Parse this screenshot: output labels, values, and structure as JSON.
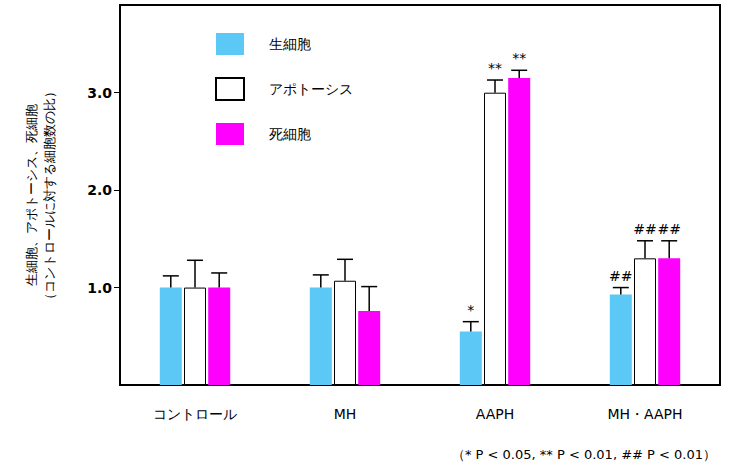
{
  "chart_data": {
    "type": "bar",
    "ylabel": [
      "生細胞、アポトーシス、死細胞",
      "（コントロールに対する細胞数の比）"
    ],
    "categories": [
      "コントロール",
      "MH",
      "AAPH",
      "MH・AAPH"
    ],
    "series": [
      {
        "name": "生細胞",
        "color": "#5bc8f5",
        "values": [
          1.0,
          1.0,
          0.55,
          0.93
        ],
        "errors": [
          0.12,
          0.13,
          0.1,
          0.07
        ],
        "annotations": [
          null,
          null,
          "*",
          "##"
        ]
      },
      {
        "name": "アポトーシス",
        "color": "#ffffff",
        "values": [
          1.0,
          1.07,
          3.0,
          1.3
        ],
        "errors": [
          0.28,
          0.22,
          0.13,
          0.18
        ],
        "annotations": [
          null,
          null,
          "**",
          "##"
        ]
      },
      {
        "name": "死細胞",
        "color": "#ff00ff",
        "values": [
          1.0,
          0.76,
          3.15,
          1.3
        ],
        "errors": [
          0.15,
          0.25,
          0.08,
          0.18
        ],
        "annotations": [
          null,
          null,
          "**",
          "##"
        ]
      }
    ],
    "ylim": [
      0,
      3.9
    ],
    "yticks": [
      {
        "value": 1,
        "label": "1.0"
      },
      {
        "value": 2,
        "label": "2.0"
      },
      {
        "value": 3,
        "label": "3.0"
      }
    ],
    "legend": "upper left",
    "footnote": "（* P < 0.05, ** P < 0.01, ## P < 0.01）"
  }
}
